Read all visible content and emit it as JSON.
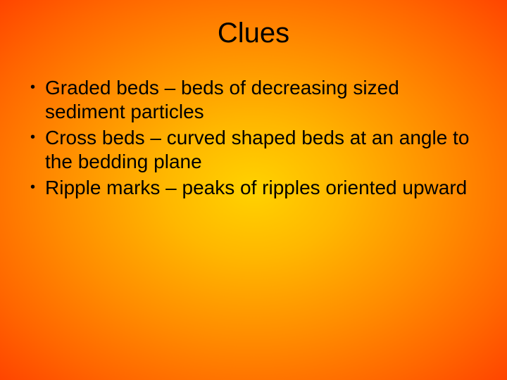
{
  "slide": {
    "title": "Clues",
    "bullets": [
      "Graded beds – beds of decreasing sized sediment particles",
      "Cross beds – curved shaped beds at an angle to the bedding plane",
      "Ripple marks – peaks of ripples oriented upward"
    ],
    "background": {
      "gradient_type": "radial",
      "center_color": "#ffd200",
      "mid_color": "#ff8c00",
      "outer_color": "#ff4500"
    },
    "typography": {
      "title_fontsize": 40,
      "body_fontsize": 28,
      "font_family": "Arial",
      "text_color": "#000000"
    }
  }
}
